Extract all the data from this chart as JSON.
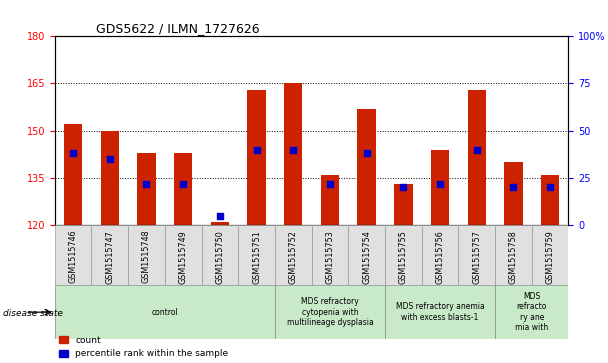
{
  "title": "GDS5622 / ILMN_1727626",
  "samples": [
    "GSM1515746",
    "GSM1515747",
    "GSM1515748",
    "GSM1515749",
    "GSM1515750",
    "GSM1515751",
    "GSM1515752",
    "GSM1515753",
    "GSM1515754",
    "GSM1515755",
    "GSM1515756",
    "GSM1515757",
    "GSM1515758",
    "GSM1515759"
  ],
  "count_values": [
    152,
    150,
    143,
    143,
    121,
    163,
    165,
    136,
    157,
    133,
    144,
    163,
    140,
    136
  ],
  "percentile_values": [
    38,
    35,
    22,
    22,
    5,
    40,
    40,
    22,
    38,
    20,
    22,
    40,
    20,
    20
  ],
  "ylim_left": [
    120,
    180
  ],
  "ylim_right": [
    0,
    100
  ],
  "yticks_left": [
    120,
    135,
    150,
    165,
    180
  ],
  "yticks_right": [
    0,
    25,
    50,
    75,
    100
  ],
  "bar_color": "#cc2200",
  "marker_color": "#0000cc",
  "background_color": "#ffffff",
  "disease_groups": [
    {
      "label": "control",
      "start": 0,
      "end": 6
    },
    {
      "label": "MDS refractory\ncytopenia with\nmultilineage dysplasia",
      "start": 6,
      "end": 9
    },
    {
      "label": "MDS refractory anemia\nwith excess blasts-1",
      "start": 9,
      "end": 12
    },
    {
      "label": "MDS\nrefracto\nry ane\nmia with",
      "start": 12,
      "end": 14
    }
  ],
  "disease_group_color": "#c8eac8",
  "sample_box_color": "#e0e0e0",
  "sample_box_edge": "#999999",
  "legend_count_label": "count",
  "legend_percentile_label": "percentile rank within the sample",
  "grid_yticks": [
    135,
    150,
    165
  ],
  "bar_width": 0.5
}
